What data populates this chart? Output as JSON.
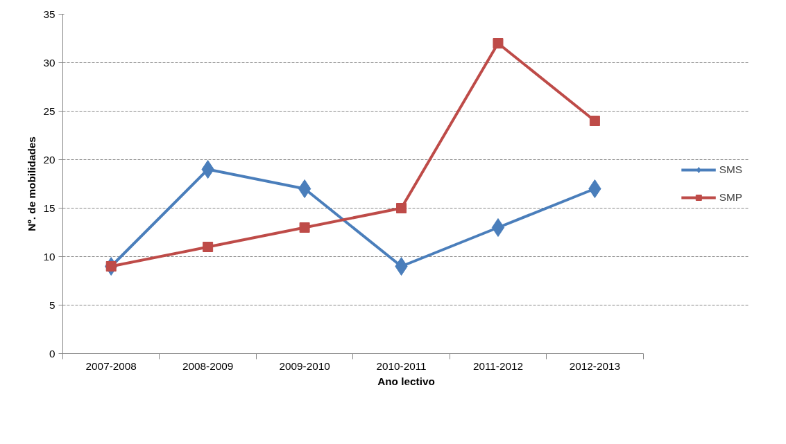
{
  "chart_data": {
    "type": "line",
    "xlabel": "Ano lectivo",
    "ylabel": "Nº. de mobilidades",
    "categories": [
      "2007-2008",
      "2008-2009",
      "2009-2010",
      "2010-2011",
      "2011-2012",
      "2012-2013"
    ],
    "series": [
      {
        "name": "SMS",
        "color": "#4a7ebb",
        "marker": "diamond",
        "values": [
          9,
          19,
          17,
          9,
          13,
          17
        ]
      },
      {
        "name": "SMP",
        "color": "#be4b48",
        "marker": "square",
        "values": [
          9,
          11,
          13,
          15,
          32,
          24
        ]
      }
    ],
    "ylim": [
      0,
      35
    ],
    "yticks": [
      0,
      5,
      10,
      15,
      20,
      25,
      30,
      35
    ],
    "grid": "y",
    "legend": "right",
    "line_style": "solid"
  }
}
